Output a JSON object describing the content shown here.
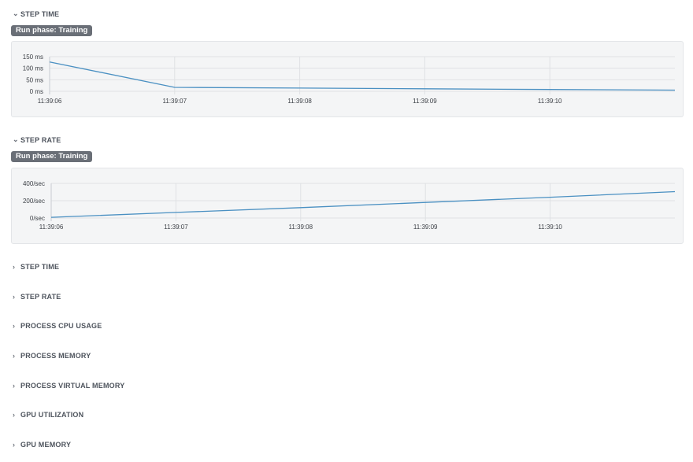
{
  "sections_open": [
    {
      "title": "STEP TIME",
      "chevron": "chevron-down-icon",
      "badge": "Run phase: Training",
      "chart_data": {
        "type": "line",
        "title": "STEP TIME",
        "xlabel": "",
        "ylabel": "",
        "x_ticks": [
          "11:39:06",
          "11:39:07",
          "11:39:08",
          "11:39:09",
          "11:39:10"
        ],
        "y_ticks": [
          "150 ms",
          "100 ms",
          "50 ms",
          "0 ms"
        ],
        "ylim": [
          0,
          150
        ],
        "xlim": [
          0,
          5
        ],
        "series": [
          {
            "color": "#4a90c2",
            "x": [
              0,
              1,
              2,
              3,
              4,
              5
            ],
            "y": [
              127,
              17,
              14,
              11,
              8,
              5
            ]
          }
        ],
        "grid": true
      }
    },
    {
      "title": "STEP RATE",
      "chevron": "chevron-down-icon",
      "badge": "Run phase: Training",
      "chart_data": {
        "type": "line",
        "title": "STEP RATE",
        "xlabel": "",
        "ylabel": "",
        "x_ticks": [
          "11:39:06",
          "11:39:07",
          "11:39:08",
          "11:39:09",
          "11:39:10"
        ],
        "y_ticks": [
          "400/sec",
          "200/sec",
          "0/sec"
        ],
        "ylim": [
          0,
          400
        ],
        "xlim": [
          0,
          5
        ],
        "series": [
          {
            "color": "#4a90c2",
            "x": [
              0,
              1,
              2,
              3,
              4,
              5
            ],
            "y": [
              8,
              65,
              120,
              180,
              240,
              305
            ]
          }
        ],
        "grid": true
      }
    }
  ],
  "sections_collapsed": [
    {
      "title": "STEP TIME",
      "chevron": "chevron-right-icon"
    },
    {
      "title": "STEP RATE",
      "chevron": "chevron-right-icon"
    },
    {
      "title": "PROCESS CPU USAGE",
      "chevron": "chevron-right-icon"
    },
    {
      "title": "PROCESS MEMORY",
      "chevron": "chevron-right-icon"
    },
    {
      "title": "PROCESS VIRTUAL MEMORY",
      "chevron": "chevron-right-icon"
    },
    {
      "title": "GPU UTILIZATION",
      "chevron": "chevron-right-icon"
    },
    {
      "title": "GPU MEMORY",
      "chevron": "chevron-right-icon"
    }
  ]
}
